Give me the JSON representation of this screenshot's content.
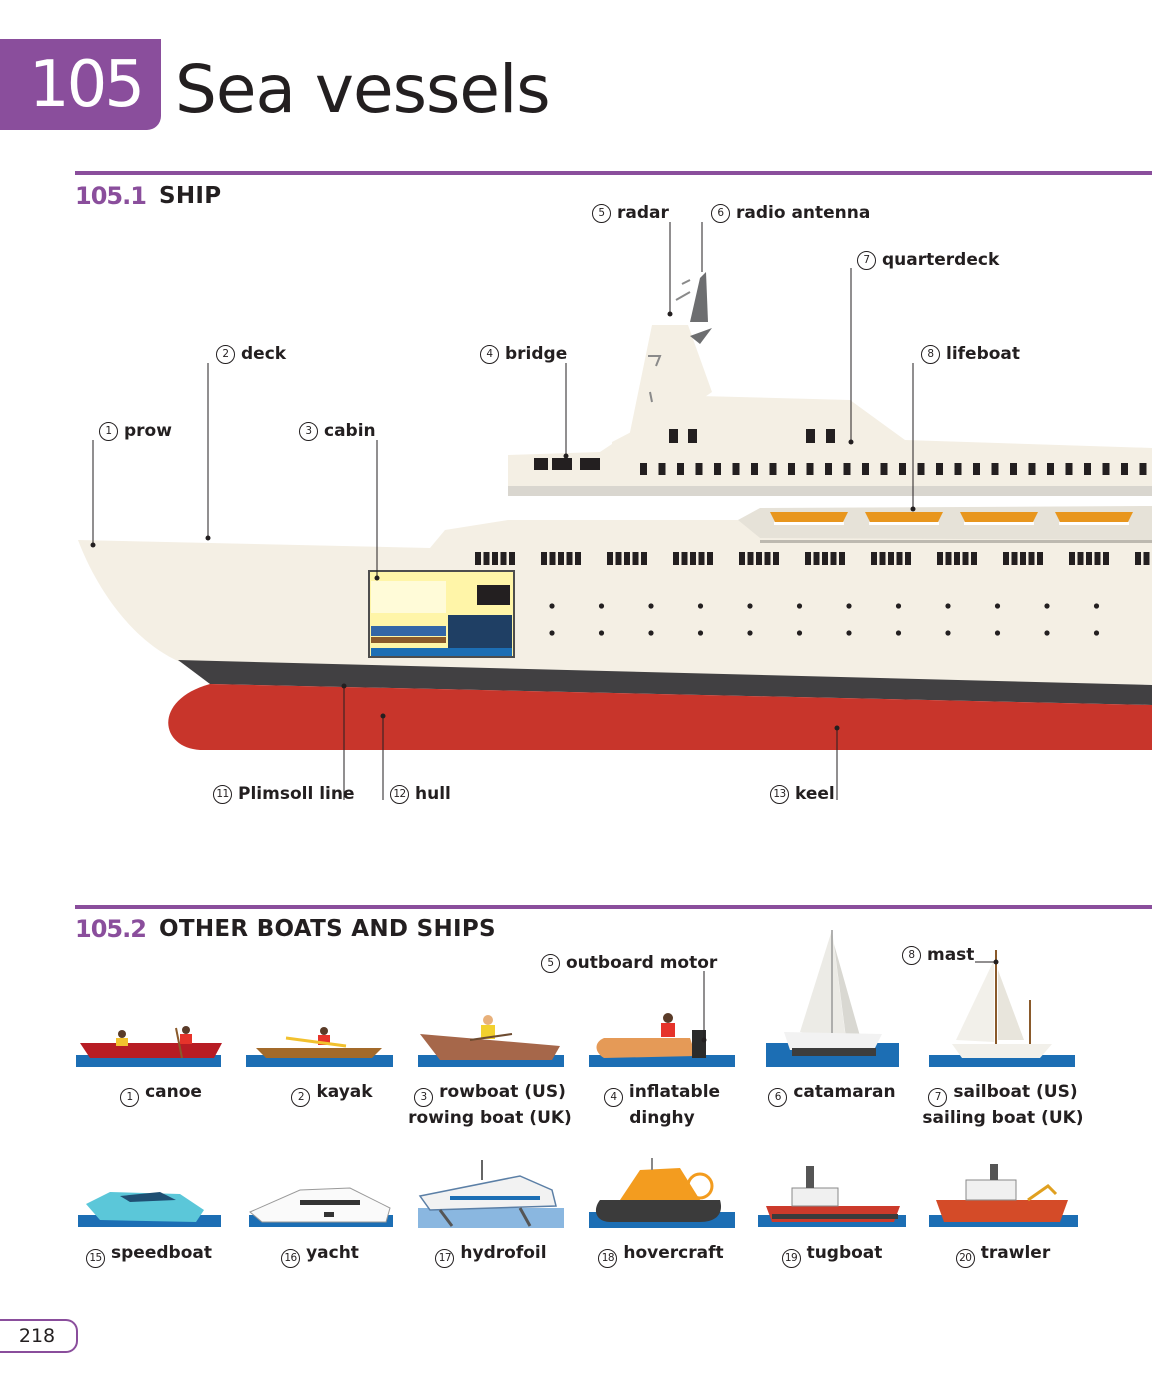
{
  "chapter": {
    "number": "105",
    "title": "Sea vessels"
  },
  "page_number": "218",
  "ship_section": {
    "number": "105.1",
    "title": "SHIP",
    "labels": [
      {
        "n": "1",
        "text": "prow"
      },
      {
        "n": "2",
        "text": "deck"
      },
      {
        "n": "3",
        "text": "cabin"
      },
      {
        "n": "4",
        "text": "bridge"
      },
      {
        "n": "5",
        "text": "radar"
      },
      {
        "n": "6",
        "text": "radio antenna"
      },
      {
        "n": "7",
        "text": "quarterdeck"
      },
      {
        "n": "8",
        "text": "lifeboat"
      },
      {
        "n": "11",
        "text": "Plimsoll line"
      },
      {
        "n": "12",
        "text": "hull"
      },
      {
        "n": "13",
        "text": "keel"
      }
    ]
  },
  "boats_section": {
    "number": "105.2",
    "title": "OTHER BOATS AND SHIPS",
    "part_labels": [
      {
        "n": "5",
        "text": "outboard motor"
      },
      {
        "n": "8",
        "text": "mast"
      }
    ],
    "boats": [
      {
        "n": "1",
        "line1": "canoe",
        "line2": ""
      },
      {
        "n": "2",
        "line1": "kayak",
        "line2": ""
      },
      {
        "n": "3",
        "line1": "rowboat (US)",
        "line2": "rowing boat (UK)"
      },
      {
        "n": "4",
        "line1": "inflatable",
        "line2": "dinghy"
      },
      {
        "n": "6",
        "line1": "catamaran",
        "line2": ""
      },
      {
        "n": "7",
        "line1": "sailboat (US)",
        "line2": "sailing boat (UK)"
      },
      {
        "n": "15",
        "line1": "speedboat",
        "line2": ""
      },
      {
        "n": "16",
        "line1": "yacht",
        "line2": ""
      },
      {
        "n": "17",
        "line1": "hydrofoil",
        "line2": ""
      },
      {
        "n": "18",
        "line1": "hovercraft",
        "line2": ""
      },
      {
        "n": "19",
        "line1": "tugboat",
        "line2": ""
      },
      {
        "n": "20",
        "line1": "trawler",
        "line2": ""
      }
    ]
  },
  "colors": {
    "accent": "#8a4e9c",
    "hull": "#c8352b",
    "water": "#1c6eb4"
  }
}
